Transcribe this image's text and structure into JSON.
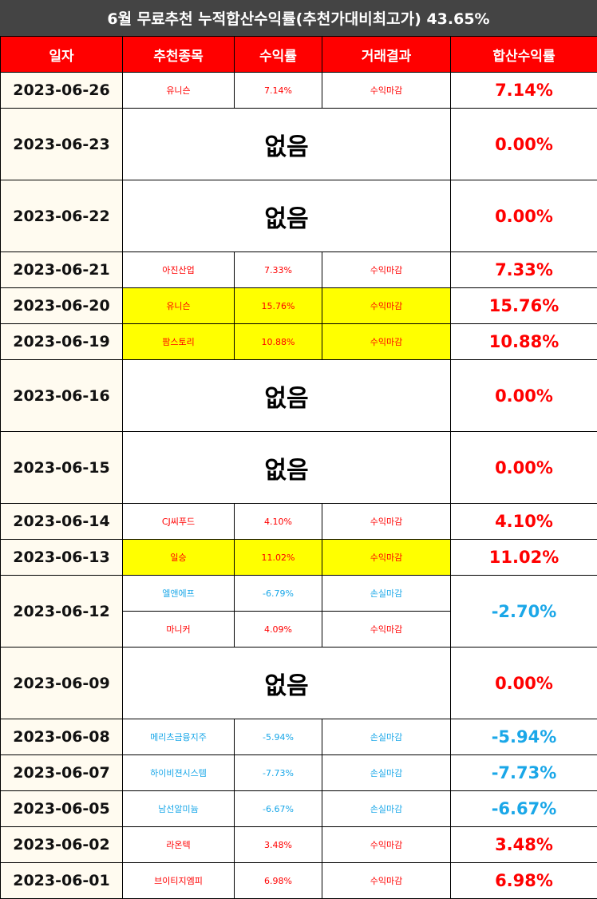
{
  "title": "6월 무료추천 누적합산수익률(추천가대비최고가) 43.65%",
  "headers": {
    "date": "일자",
    "stock": "추천종목",
    "return": "수익률",
    "result": "거래결과",
    "total": "합산수익률"
  },
  "colors": {
    "profit": "#ff0000",
    "loss": "#1aa7e8",
    "header": "#ff0000",
    "highlight": "#ffff00",
    "title_bg": "#444444"
  },
  "rows": [
    {
      "date": "2023-06-26",
      "stock": "유니슨",
      "return": "7.14%",
      "result": "수익마감",
      "total": "7.14%"
    },
    {
      "date": "2023-06-23",
      "none": "없음",
      "total": "0.00%"
    },
    {
      "date": "2023-06-22",
      "none": "없음",
      "total": "0.00%"
    },
    {
      "date": "2023-06-21",
      "stock": "아진산업",
      "return": "7.33%",
      "result": "수익마감",
      "total": "7.33%"
    },
    {
      "date": "2023-06-20",
      "stock": "유니슨",
      "return": "15.76%",
      "result": "수익마감",
      "total": "15.76%"
    },
    {
      "date": "2023-06-19",
      "stock": "팜스토리",
      "return": "10.88%",
      "result": "수익마감",
      "total": "10.88%"
    },
    {
      "date": "2023-06-16",
      "none": "없음",
      "total": "0.00%"
    },
    {
      "date": "2023-06-15",
      "none": "없음",
      "total": "0.00%"
    },
    {
      "date": "2023-06-14",
      "stock": "CJ씨푸드",
      "return": "4.10%",
      "result": "수익마감",
      "total": "4.10%"
    },
    {
      "date": "2023-06-13",
      "stock": "일승",
      "return": "11.02%",
      "result": "수익마감",
      "total": "11.02%"
    },
    {
      "date": "2023-06-12",
      "stock": "엘앤에프",
      "return": "-6.79%",
      "result": "손실마감",
      "total": "-2.70%",
      "stock2": "마니커",
      "return2": "4.09%",
      "result2": "수익마감"
    },
    {
      "date": "2023-06-09",
      "none": "없음",
      "total": "0.00%"
    },
    {
      "date": "2023-06-08",
      "stock": "메리츠금융지주",
      "return": "-5.94%",
      "result": "손실마감",
      "total": "-5.94%"
    },
    {
      "date": "2023-06-07",
      "stock": "하이비젼시스템",
      "return": "-7.73%",
      "result": "손실마감",
      "total": "-7.73%"
    },
    {
      "date": "2023-06-05",
      "stock": "남선알미늄",
      "return": "-6.67%",
      "result": "손실마감",
      "total": "-6.67%"
    },
    {
      "date": "2023-06-02",
      "stock": "라온텍",
      "return": "3.48%",
      "result": "수익마감",
      "total": "3.48%"
    },
    {
      "date": "2023-06-01",
      "stock": "브이티지엠피",
      "return": "6.98%",
      "result": "수익마감",
      "total": "6.98%"
    }
  ]
}
